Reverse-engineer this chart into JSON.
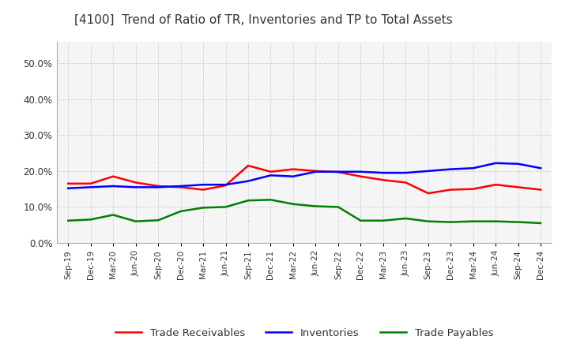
{
  "title": "[4100]  Trend of Ratio of TR, Inventories and TP to Total Assets",
  "ylim": [
    0.0,
    0.56
  ],
  "yticks": [
    0.0,
    0.1,
    0.2,
    0.3,
    0.4,
    0.5
  ],
  "ytick_labels": [
    "0.0%",
    "10.0%",
    "20.0%",
    "30.0%",
    "40.0%",
    "50.0%"
  ],
  "x_labels": [
    "Sep-19",
    "Dec-19",
    "Mar-20",
    "Jun-20",
    "Sep-20",
    "Dec-20",
    "Mar-21",
    "Jun-21",
    "Sep-21",
    "Dec-21",
    "Mar-22",
    "Jun-22",
    "Sep-22",
    "Dec-22",
    "Mar-23",
    "Jun-23",
    "Sep-23",
    "Dec-23",
    "Mar-24",
    "Jun-24",
    "Sep-24",
    "Dec-24"
  ],
  "trade_receivables": [
    0.165,
    0.165,
    0.185,
    0.168,
    0.158,
    0.155,
    0.148,
    0.16,
    0.215,
    0.198,
    0.205,
    0.2,
    0.197,
    0.185,
    0.175,
    0.168,
    0.138,
    0.148,
    0.15,
    0.162,
    0.155,
    0.148
  ],
  "inventories": [
    0.152,
    0.155,
    0.158,
    0.155,
    0.155,
    0.158,
    0.162,
    0.162,
    0.172,
    0.188,
    0.185,
    0.198,
    0.198,
    0.198,
    0.195,
    0.195,
    0.2,
    0.205,
    0.208,
    0.222,
    0.22,
    0.208
  ],
  "trade_payables": [
    0.062,
    0.065,
    0.078,
    0.06,
    0.063,
    0.088,
    0.098,
    0.1,
    0.118,
    0.12,
    0.108,
    0.102,
    0.1,
    0.062,
    0.062,
    0.068,
    0.06,
    0.058,
    0.06,
    0.06,
    0.058,
    0.055
  ],
  "tr_color": "#ff0000",
  "inv_color": "#0000ff",
  "tp_color": "#008000",
  "tr_label": "Trade Receivables",
  "inv_label": "Inventories",
  "tp_label": "Trade Payables",
  "bg_color": "#ffffff",
  "plot_bg_color": "#f5f5f5",
  "grid_color": "#bbbbbb",
  "title_color": "#333333",
  "line_width": 1.8
}
